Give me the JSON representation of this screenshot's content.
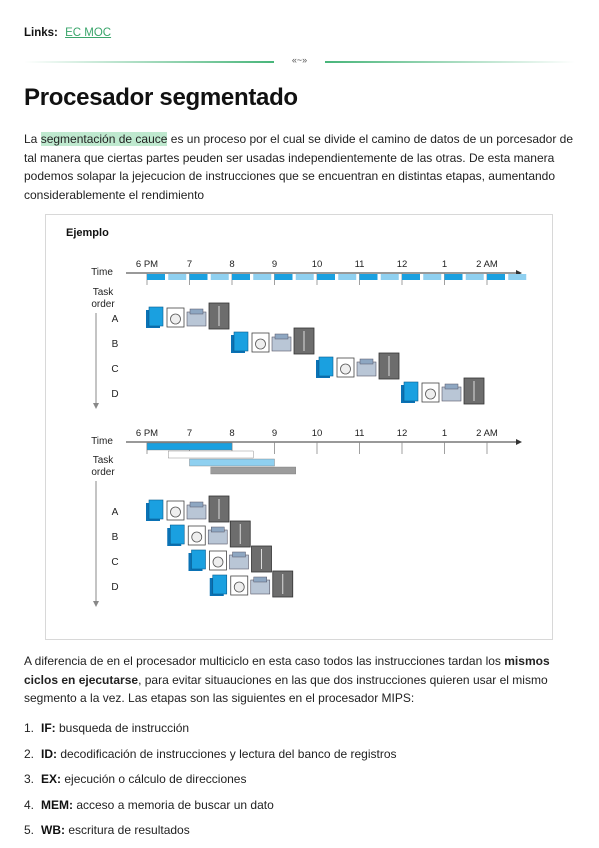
{
  "links": {
    "label": "Links:",
    "link_text": "EC MOC"
  },
  "divider": {
    "ornament": "«~»"
  },
  "title": "Procesador segmentado",
  "intro": {
    "pre": "La ",
    "highlight": "segmentación de cauce",
    "post": " es un proceso por el cual se divide el camino de datos de un porcesador de tal manera que ciertas partes peuden ser usadas independientemente de las otras. De esta manera podemos solapar la jejecucion de instrucciones que se encuentran en distintas etapas, aumentando considerablemente el rendimiento"
  },
  "figure": {
    "title": "Ejemplo",
    "time_label": "Time",
    "task_label_1": "Task",
    "task_label_2": "order",
    "times": [
      "6 PM",
      "7",
      "8",
      "9",
      "10",
      "11",
      "12",
      "1",
      "2 AM"
    ],
    "tasks": [
      "A",
      "B",
      "C",
      "D"
    ],
    "colors": {
      "wash": "#1aa0e0",
      "dry": "#ffffff",
      "fold": "#b9c6d6",
      "store": "#6d6d6d",
      "axis": "#333333"
    }
  },
  "para2": {
    "pre": "A diferencia de en el procesador multiciclo en esta caso todos las instrucciones tardan los ",
    "bold": "mismos ciclos en ejecutarse",
    "post": ", para evitar situauciones en las que dos instrucciones quieren usar el mismo segmento a la vez. Las etapas son las siguientes en el procesador MIPS:"
  },
  "stages": [
    {
      "num": "1.",
      "abbr": "IF:",
      "desc": " busqueda de instrucción"
    },
    {
      "num": "2.",
      "abbr": "ID:",
      "desc": " decodificación de instrucciones y lectura del banco de registros"
    },
    {
      "num": "3.",
      "abbr": "EX:",
      "desc": " ejecución o cálculo de direcciones"
    },
    {
      "num": "4.",
      "abbr": "MEM:",
      "desc": " acceso a memoria de buscar un dato"
    },
    {
      "num": "5.",
      "abbr": "WB:",
      "desc": " escritura de resultados"
    }
  ]
}
